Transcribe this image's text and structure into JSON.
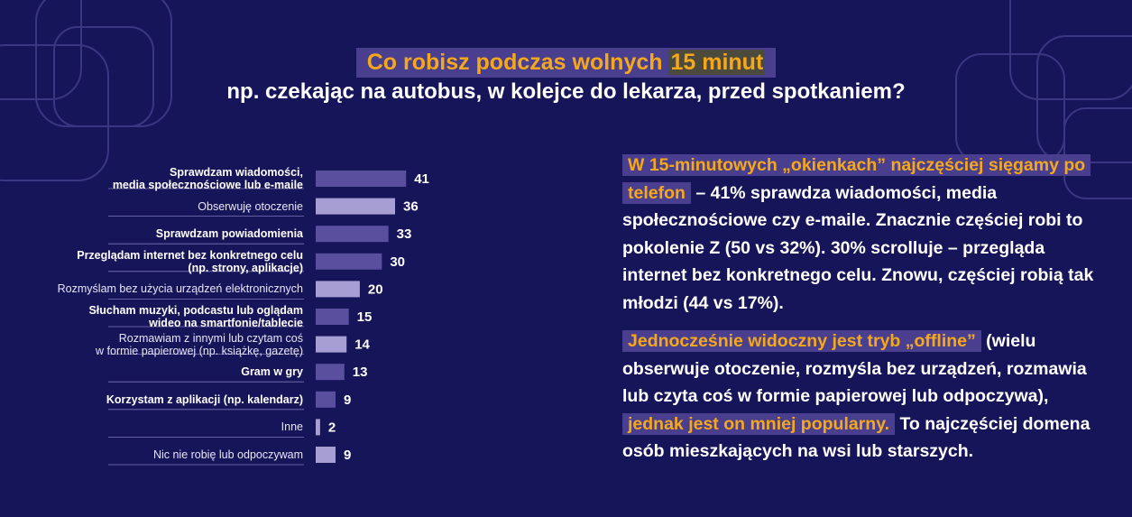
{
  "title": {
    "line1_prefix": "Co robisz podczas wolnych",
    "line1_highlight": "15 minut",
    "line2": "np. czekając na autobus, w kolejce do lekarza, przed spotkaniem?"
  },
  "colors": {
    "background": "#17155a",
    "bar_dark": "#5a4f9e",
    "bar_light": "#a79fd4",
    "accent": "#f6a81c",
    "highlight_box": "#4a3f8e"
  },
  "chart_data": {
    "type": "bar",
    "orientation": "horizontal",
    "categories": [
      "Sprawdzam wiadomości, media społecznościowe lub e-maile",
      "Obserwuję otoczenie",
      "Sprawdzam powiadomienia",
      "Przeglądam internet bez konkretnego celu (np. strony, aplikacje)",
      "Rozmyślam bez użycia urządzeń elektronicznych",
      "Słucham muzyki, podcastu lub oglądam wideo na smartfonie/tablecie",
      "Rozmawiam z innymi lub czytam coś w formie papierowej (np. książkę, gazetę)",
      "Gram w gry",
      "Korzystam z aplikacji (np. kalendarz)",
      "Inne",
      "Nic nie robię lub odpoczywam"
    ],
    "category_lines": [
      [
        "Sprawdzam wiadomości,",
        "media społecznościowe lub e-maile"
      ],
      [
        "Obserwuję otoczenie"
      ],
      [
        "Sprawdzam powiadomienia"
      ],
      [
        "Przeglądam internet bez konkretnego celu",
        "(np. strony, aplikacje)"
      ],
      [
        "Rozmyślam bez użycia urządzeń elektronicznych"
      ],
      [
        "Słucham muzyki, podcastu lub oglądam",
        "wideo na smartfonie/tablecie"
      ],
      [
        "Rozmawiam z innymi lub czytam coś",
        "w formie papierowej (np. książkę, gazetę)"
      ],
      [
        "Gram w gry"
      ],
      [
        "Korzystam z aplikacji (np. kalendarz)"
      ],
      [
        "Inne"
      ],
      [
        "Nic nie robię lub odpoczywam"
      ]
    ],
    "category_style": [
      "bold",
      "light",
      "bold",
      "bold",
      "light",
      "bold",
      "light",
      "bold",
      "bold",
      "light",
      "light"
    ],
    "values": [
      41,
      36,
      33,
      30,
      20,
      15,
      14,
      13,
      9,
      2,
      9
    ],
    "xlim": [
      0,
      45
    ],
    "grid": false,
    "legend": "none"
  },
  "right_panel": {
    "p1_highlight": "W 15-minutowych „okienkach” najczęściej sięgamy po telefon",
    "p1_rest": "– 41% sprawdza wiadomości, media społecznościowe czy e-maile. Znacznie częściej robi to pokolenie Z (50 vs 32%). 30% scrolluje – przegląda internet bez konkretnego celu. Znowu, częściej robią tak młodzi (44 vs 17%).",
    "p2_highlight1": "Jednocześnie widoczny jest tryb „offline”",
    "p2_mid": "(wielu obserwuje otoczenie, rozmyśla bez urządzeń, rozmawia lub czyta coś w formie papierowej lub odpoczywa),",
    "p2_highlight2": "jednak jest on mniej popularny.",
    "p2_rest": "To najczęściej domena osób mieszkających na wsi lub starszych."
  }
}
